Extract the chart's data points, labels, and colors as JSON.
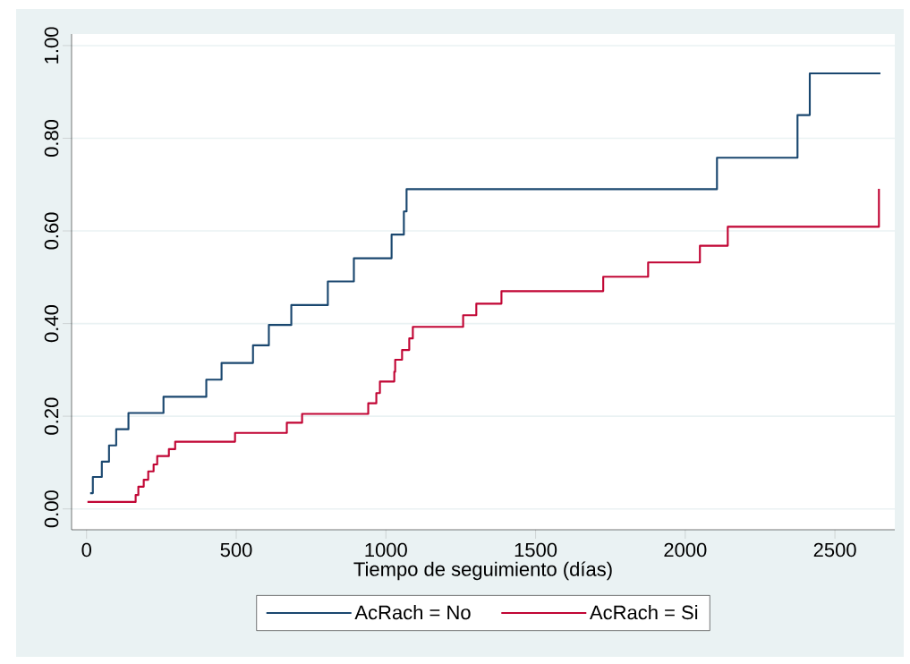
{
  "chart_data": {
    "type": "step",
    "xlabel": "Tiempo de seguimiento (días)",
    "xlim": [
      -50,
      2700
    ],
    "ylim": [
      -0.045,
      1.025
    ],
    "xticks": [
      0,
      500,
      1000,
      1500,
      2000,
      2500
    ],
    "yticks": [
      {
        "value": 0,
        "label": "0.00"
      },
      {
        "value": 0.2,
        "label": "0.20"
      },
      {
        "value": 0.4,
        "label": "0.40"
      },
      {
        "value": 0.6,
        "label": "0.60"
      },
      {
        "value": 0.8,
        "label": "0.80"
      },
      {
        "value": 1.0,
        "label": "1.00"
      }
    ],
    "grid": "y",
    "legend": "bottom",
    "series": [
      {
        "name": "AcRach = No",
        "color": "#1a476f",
        "x": [
          12,
          21,
          51,
          75,
          99,
          140,
          257,
          400,
          451,
          556,
          609,
          684,
          806,
          893,
          1019,
          1060,
          1069,
          2106,
          2375,
          2416,
          2652
        ],
        "values": [
          0.034,
          0.069,
          0.102,
          0.137,
          0.172,
          0.207,
          0.242,
          0.279,
          0.315,
          0.353,
          0.397,
          0.44,
          0.491,
          0.541,
          0.592,
          0.642,
          0.69,
          0.758,
          0.85,
          0.94,
          0.94
        ]
      },
      {
        "name": "AcRach = Si",
        "color": "#c10534",
        "x": [
          3,
          164,
          173,
          191,
          206,
          224,
          236,
          275,
          296,
          496,
          669,
          720,
          941,
          968,
          980,
          1028,
          1031,
          1054,
          1078,
          1090,
          1258,
          1302,
          1386,
          1726,
          1876,
          2049,
          2142,
          2647
        ],
        "values": [
          0.015,
          0.03,
          0.048,
          0.063,
          0.081,
          0.096,
          0.114,
          0.129,
          0.145,
          0.164,
          0.186,
          0.205,
          0.228,
          0.25,
          0.275,
          0.296,
          0.322,
          0.343,
          0.368,
          0.393,
          0.418,
          0.443,
          0.47,
          0.501,
          0.532,
          0.568,
          0.609,
          0.691
        ]
      }
    ]
  }
}
